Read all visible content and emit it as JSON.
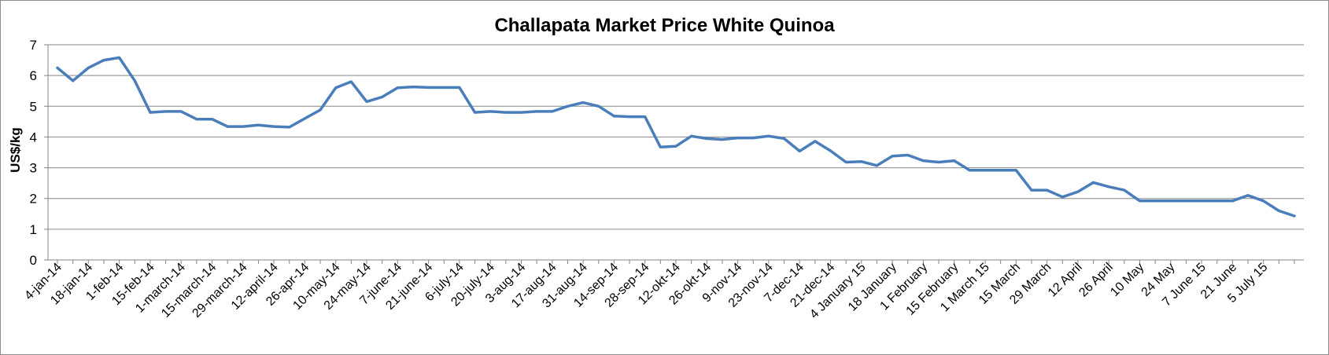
{
  "chart_data": {
    "type": "line",
    "title": "Challapata Market Price White Quinoa",
    "xlabel": "",
    "ylabel": "US$/kg",
    "ylim": [
      0,
      7
    ],
    "yticks": [
      0,
      1,
      2,
      3,
      4,
      5,
      6,
      7
    ],
    "grid": true,
    "legend": "none",
    "line_color": "#4a7ebb",
    "grid_color": "#868686",
    "x_tick_labels": [
      "4-jan-14",
      "18-jan-14",
      "1-feb-14",
      "15-feb-14",
      "1-march-14",
      "15-march-14",
      "29-march-14",
      "12-april-14",
      "26-apr-14",
      "10-may-14",
      "24-may-14",
      "7-june-14",
      "21-june-14",
      "6-july-14",
      "20-july-14",
      "3-aug-14",
      "17-aug-14",
      "31-aug-14",
      "14-sep-14",
      "28-sep-14",
      "12-okt-14",
      "26-okt-14",
      "9-nov-14",
      "23-nov-14",
      "7-dec-14",
      "21-dec-14",
      "4 January 15",
      "18 January",
      "1 February",
      "15 February",
      "1 March 15",
      "15 March",
      "29 March",
      "12 April",
      "26 April",
      "10 May",
      "24 May",
      "7 June 15",
      "21 June",
      "5 July 15"
    ],
    "x_tick_every": 2,
    "series": [
      {
        "values": [
          6.25,
          5.83,
          6.25,
          6.5,
          6.58,
          5.83,
          4.8,
          4.83,
          4.83,
          4.58,
          4.58,
          4.34,
          4.34,
          4.39,
          4.34,
          4.32,
          4.6,
          4.88,
          5.6,
          5.8,
          5.15,
          5.3,
          5.6,
          5.63,
          5.61,
          5.61,
          5.61,
          4.8,
          4.83,
          4.8,
          4.8,
          4.83,
          4.83,
          5.0,
          5.12,
          5.0,
          4.68,
          4.66,
          4.66,
          3.67,
          3.7,
          4.03,
          3.95,
          3.92,
          3.97,
          3.97,
          4.03,
          3.95,
          3.54,
          3.86,
          3.55,
          3.18,
          3.2,
          3.07,
          3.38,
          3.41,
          3.23,
          3.18,
          3.23,
          2.92,
          2.92,
          2.92,
          2.92,
          2.27,
          2.27,
          2.05,
          2.22,
          2.52,
          2.38,
          2.27,
          1.92,
          1.92,
          1.92,
          1.92,
          1.92,
          1.92,
          1.92,
          2.1,
          1.92,
          1.6,
          1.43
        ]
      }
    ]
  }
}
